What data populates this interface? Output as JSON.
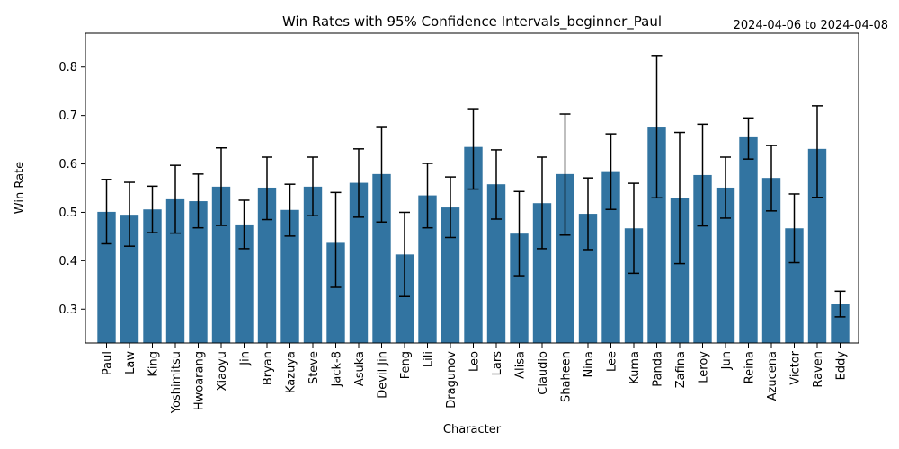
{
  "chart_data": {
    "type": "bar",
    "title": "Win Rates with 95% Confidence Intervals_beginner_Paul",
    "date_range": "2024-04-06 to 2024-04-08",
    "xlabel": "Character",
    "ylabel": "Win Rate",
    "ylim": [
      0.23,
      0.87
    ],
    "yticks": [
      "0.3",
      "0.4",
      "0.5",
      "0.6",
      "0.7",
      "0.8"
    ],
    "bar_color": "#3274a1",
    "grid": false,
    "categories": [
      "Paul",
      "Law",
      "King",
      "Yoshimitsu",
      "Hwoarang",
      "Xiaoyu",
      "Jin",
      "Bryan",
      "Kazuya",
      "Steve",
      "Jack-8",
      "Asuka",
      "Devil Jin",
      "Feng",
      "Lili",
      "Dragunov",
      "Leo",
      "Lars",
      "Alisa",
      "Claudio",
      "Shaheen",
      "Nina",
      "Lee",
      "Kuma",
      "Panda",
      "Zafina",
      "Leroy",
      "Jun",
      "Reina",
      "Azucena",
      "Victor",
      "Raven",
      "Eddy"
    ],
    "values": [
      0.501,
      0.495,
      0.506,
      0.527,
      0.523,
      0.553,
      0.475,
      0.551,
      0.505,
      0.553,
      0.437,
      0.561,
      0.579,
      0.413,
      0.535,
      0.51,
      0.635,
      0.558,
      0.456,
      0.519,
      0.579,
      0.497,
      0.585,
      0.467,
      0.677,
      0.529,
      0.577,
      0.551,
      0.655,
      0.571,
      0.467,
      0.631,
      0.311
    ],
    "ci_lower": [
      0.435,
      0.43,
      0.458,
      0.457,
      0.468,
      0.473,
      0.425,
      0.485,
      0.451,
      0.493,
      0.345,
      0.49,
      0.48,
      0.326,
      0.468,
      0.448,
      0.548,
      0.486,
      0.369,
      0.425,
      0.453,
      0.423,
      0.506,
      0.374,
      0.53,
      0.394,
      0.472,
      0.488,
      0.61,
      0.503,
      0.396,
      0.531,
      0.284
    ],
    "ci_upper": [
      0.568,
      0.562,
      0.554,
      0.597,
      0.579,
      0.633,
      0.525,
      0.614,
      0.558,
      0.614,
      0.541,
      0.631,
      0.677,
      0.5,
      0.601,
      0.573,
      0.714,
      0.629,
      0.543,
      0.614,
      0.703,
      0.571,
      0.662,
      0.56,
      0.824,
      0.665,
      0.682,
      0.614,
      0.695,
      0.638,
      0.538,
      0.72,
      0.337
    ]
  }
}
